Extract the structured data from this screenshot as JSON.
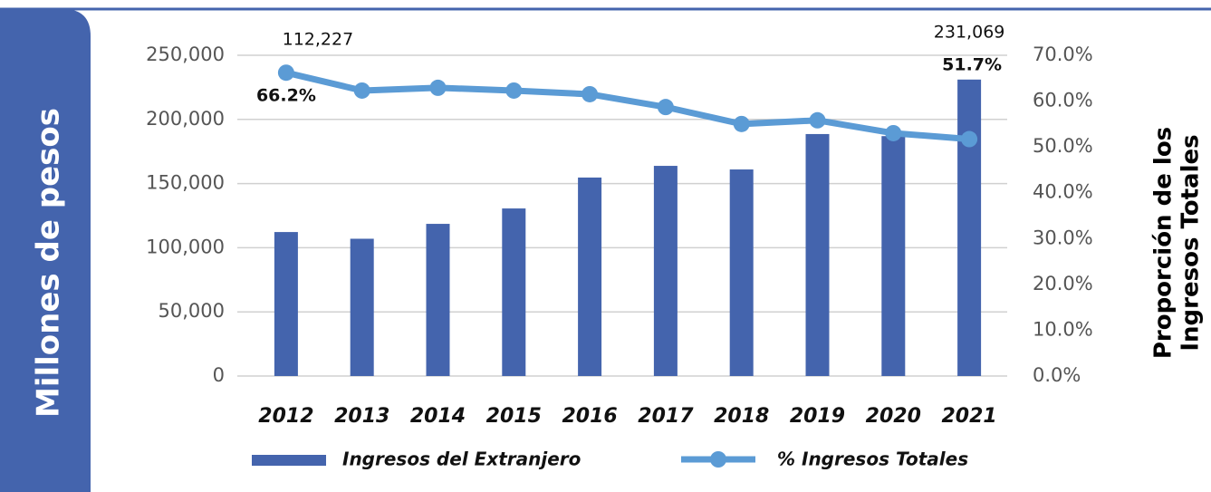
{
  "chart_data": {
    "type": "bar_line",
    "ylabel": "Millones de pesos",
    "y2label": [
      "Proporción de los",
      "Ingresos Totales"
    ],
    "categories": [
      "2012",
      "2013",
      "2014",
      "2015",
      "2016",
      "2017",
      "2018",
      "2019",
      "2020",
      "2021"
    ],
    "series": [
      {
        "name": "Ingresos del Extranjero",
        "type": "bar",
        "color": "#4464ad",
        "values": [
          112227,
          107000,
          118600,
          130600,
          154700,
          163800,
          161000,
          188600,
          187000,
          231069
        ],
        "value_labels": [
          "112,227",
          null,
          null,
          null,
          null,
          null,
          null,
          null,
          null,
          "231,069"
        ]
      },
      {
        "name": "% Ingresos Totales",
        "type": "line",
        "axis": "y2",
        "color": "#5b9bd5",
        "values": [
          66.2,
          62.3,
          62.9,
          62.3,
          61.5,
          58.7,
          55.0,
          55.8,
          53.0,
          51.7
        ],
        "value_labels": [
          "66.2%",
          null,
          null,
          null,
          null,
          null,
          null,
          null,
          null,
          "51.7%"
        ]
      }
    ],
    "ylim": [
      0,
      250000
    ],
    "yticks": [
      0,
      {
        "value": 50000,
        "label": "50,000"
      },
      {
        "value": 100000,
        "label": "100,000"
      },
      {
        "value": 150000,
        "label": "150,000"
      },
      {
        "value": 200000,
        "label": "200,000"
      },
      {
        "value": 250000,
        "label": "250,000"
      }
    ],
    "y2lim": [
      0,
      70
    ],
    "y2ticks": [
      {
        "value": 0,
        "label": "0.0%"
      },
      {
        "value": 10,
        "label": "10.0%"
      },
      {
        "value": 20,
        "label": "20.0%"
      },
      {
        "value": 30,
        "label": "30.0%"
      },
      {
        "value": 40,
        "label": "40.0%"
      },
      {
        "value": 50,
        "label": "50.0%"
      },
      {
        "value": 60,
        "label": "60.0%"
      },
      {
        "value": 70,
        "label": "70.0%"
      }
    ],
    "grid": true,
    "legend": "bottom"
  }
}
